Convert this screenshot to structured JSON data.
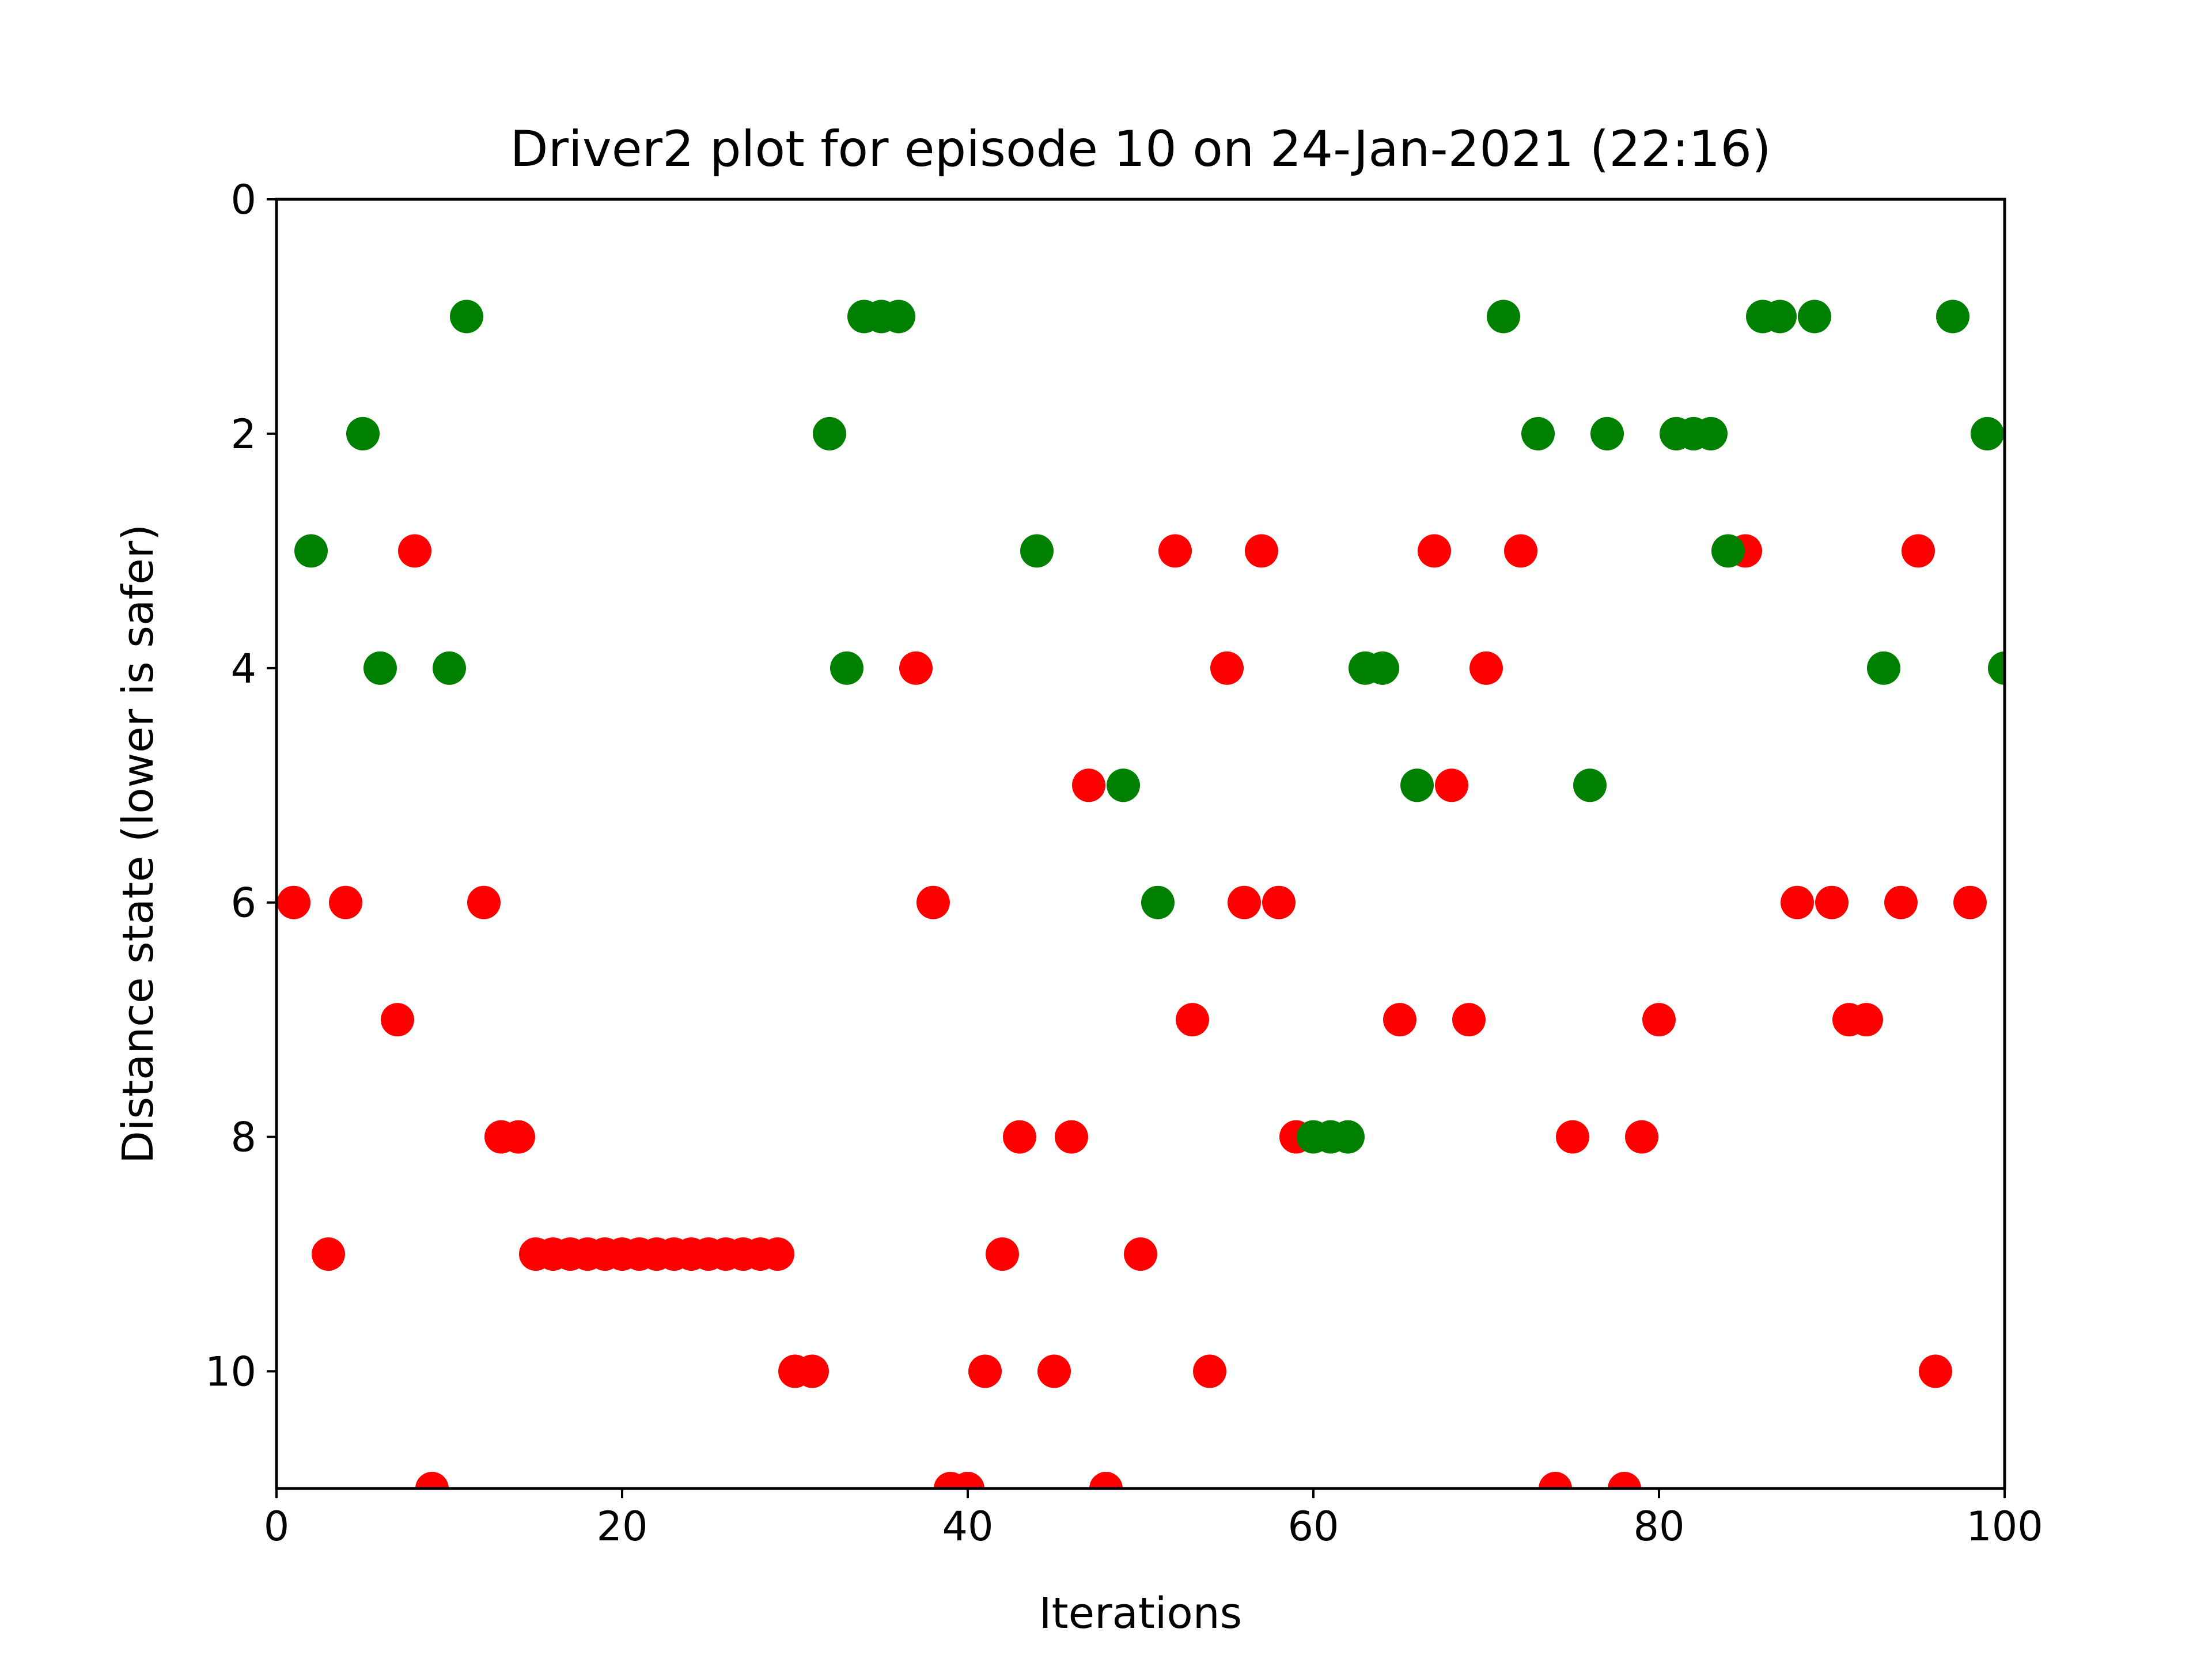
{
  "chart_data": {
    "type": "scatter",
    "title": "Driver2 plot for episode 10 on 24-Jan-2021 (22:16)",
    "xlabel": "Iterations",
    "ylabel": "Distance state (lower is safer)",
    "xlim": [
      0,
      100
    ],
    "ylim": [
      11,
      0
    ],
    "y_inverted": true,
    "grid": false,
    "x_ticks": [
      "0",
      "20",
      "40",
      "60",
      "80",
      "100"
    ],
    "y_ticks": [
      "0",
      "2",
      "4",
      "6",
      "8",
      "10"
    ],
    "x_tick_values": [
      0,
      20,
      40,
      60,
      80,
      100
    ],
    "y_tick_values": [
      0,
      2,
      4,
      6,
      8,
      10
    ],
    "series": [
      {
        "color": "#ff0000",
        "points": [
          [
            1,
            6
          ],
          [
            3,
            9
          ],
          [
            4,
            6
          ],
          [
            7,
            7
          ],
          [
            8,
            3
          ],
          [
            9,
            11
          ],
          [
            12,
            6
          ],
          [
            13,
            8
          ],
          [
            14,
            8
          ],
          [
            15,
            9
          ],
          [
            16,
            9
          ],
          [
            17,
            9
          ],
          [
            18,
            9
          ],
          [
            19,
            9
          ],
          [
            20,
            9
          ],
          [
            21,
            9
          ],
          [
            22,
            9
          ],
          [
            23,
            9
          ],
          [
            24,
            9
          ],
          [
            25,
            9
          ],
          [
            26,
            9
          ],
          [
            27,
            9
          ],
          [
            28,
            9
          ],
          [
            29,
            9
          ],
          [
            30,
            10
          ],
          [
            31,
            10
          ],
          [
            37,
            4
          ],
          [
            38,
            6
          ],
          [
            39,
            11
          ],
          [
            40,
            11
          ],
          [
            41,
            10
          ],
          [
            42,
            9
          ],
          [
            43,
            8
          ],
          [
            45,
            10
          ],
          [
            46,
            8
          ],
          [
            47,
            5
          ],
          [
            48,
            11
          ],
          [
            50,
            9
          ],
          [
            52,
            3
          ],
          [
            53,
            7
          ],
          [
            54,
            10
          ],
          [
            55,
            4
          ],
          [
            56,
            6
          ],
          [
            57,
            3
          ],
          [
            58,
            6
          ],
          [
            59,
            8
          ],
          [
            65,
            7
          ],
          [
            67,
            3
          ],
          [
            68,
            5
          ],
          [
            69,
            7
          ],
          [
            70,
            4
          ],
          [
            72,
            3
          ],
          [
            74,
            11
          ],
          [
            75,
            8
          ],
          [
            78,
            11
          ],
          [
            79,
            8
          ],
          [
            80,
            7
          ],
          [
            85,
            3
          ],
          [
            88,
            6
          ],
          [
            90,
            6
          ],
          [
            91,
            7
          ],
          [
            92,
            7
          ],
          [
            94,
            6
          ],
          [
            95,
            3
          ],
          [
            96,
            10
          ],
          [
            98,
            6
          ]
        ]
      },
      {
        "color": "#008000",
        "points": [
          [
            2,
            3
          ],
          [
            5,
            2
          ],
          [
            6,
            4
          ],
          [
            10,
            4
          ],
          [
            11,
            1
          ],
          [
            32,
            2
          ],
          [
            33,
            4
          ],
          [
            34,
            1
          ],
          [
            35,
            1
          ],
          [
            36,
            1
          ],
          [
            44,
            3
          ],
          [
            49,
            5
          ],
          [
            51,
            6
          ],
          [
            60,
            8
          ],
          [
            61,
            8
          ],
          [
            62,
            8
          ],
          [
            63,
            4
          ],
          [
            64,
            4
          ],
          [
            66,
            5
          ],
          [
            71,
            1
          ],
          [
            73,
            2
          ],
          [
            76,
            5
          ],
          [
            77,
            2
          ],
          [
            81,
            2
          ],
          [
            82,
            2
          ],
          [
            83,
            2
          ],
          [
            84,
            3
          ],
          [
            86,
            1
          ],
          [
            87,
            1
          ],
          [
            89,
            1
          ],
          [
            93,
            4
          ],
          [
            97,
            1
          ],
          [
            99,
            2
          ],
          [
            100,
            4
          ]
        ]
      }
    ]
  }
}
